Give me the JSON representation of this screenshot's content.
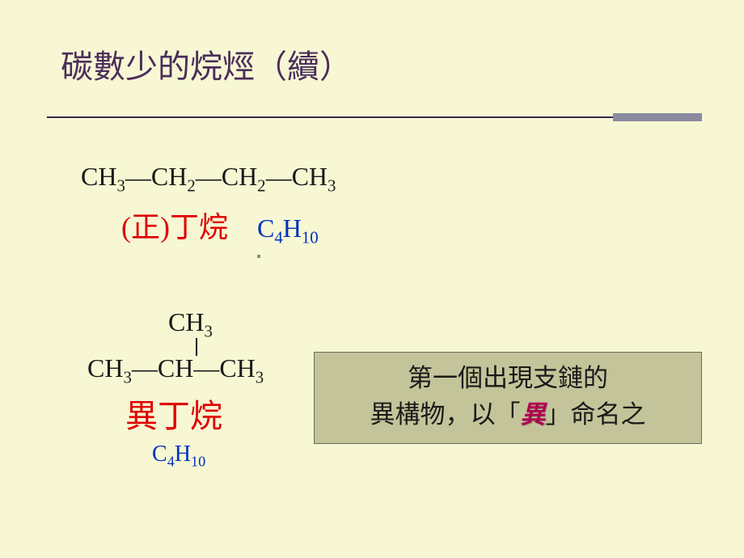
{
  "title": "碳數少的烷烴（續）",
  "butane": {
    "chain_parts": [
      "CH",
      "3",
      "CH",
      "2",
      "CH",
      "2",
      "CH",
      "3"
    ],
    "bond": "—",
    "name": "(正)丁烷",
    "formula_base": "C",
    "formula_sub1": "4",
    "formula_mid": "H",
    "formula_sub2": "10"
  },
  "isobutane": {
    "top_base": "CH",
    "top_sub": "3",
    "main_parts": [
      "CH",
      "3",
      "CH",
      "CH",
      "3"
    ],
    "bond": "—",
    "name": "異丁烷",
    "formula_base": "C",
    "formula_sub1": "4",
    "formula_mid": "H",
    "formula_sub2": "10"
  },
  "note": {
    "line1": "第一個出現支鏈的",
    "line2_a": "異構物，以「",
    "em": "異",
    "line2_b": "」命名之"
  },
  "colors": {
    "bg": "#f7f7d4",
    "title": "#4b2e5a",
    "red": "#e00000",
    "blue": "#0030c0",
    "note_bg": "#c4c49a",
    "em": "#b00050"
  }
}
